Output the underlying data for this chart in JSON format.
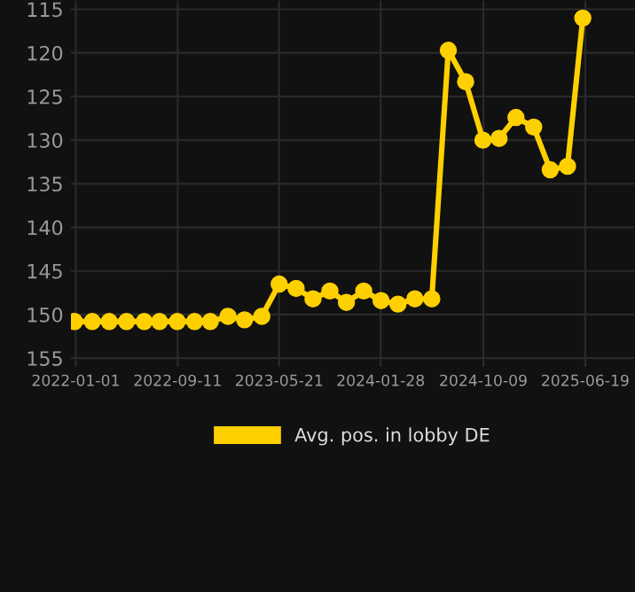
{
  "chart_data": {
    "type": "line",
    "x": [
      "2021-12-29",
      "2022-02-11",
      "2022-03-25",
      "2022-05-07",
      "2022-06-20",
      "2022-07-28",
      "2022-09-10",
      "2022-10-23",
      "2022-12-01",
      "2023-01-14",
      "2023-02-24",
      "2023-04-08",
      "2023-05-21",
      "2023-07-02",
      "2023-08-13",
      "2023-09-24",
      "2023-11-04",
      "2023-12-17",
      "2024-01-29",
      "2024-03-11",
      "2024-04-22",
      "2024-06-03",
      "2024-07-14",
      "2024-08-26",
      "2024-10-08",
      "2024-11-17",
      "2024-12-29",
      "2025-02-11",
      "2025-03-24",
      "2025-05-06",
      "2025-06-13"
    ],
    "series": [
      {
        "name": "Avg. pos. in lobby DE",
        "color": "#ffd000",
        "values": [
          150.8,
          150.8,
          150.8,
          150.8,
          150.8,
          150.8,
          150.8,
          150.8,
          150.8,
          150.2,
          150.6,
          150.2,
          146.5,
          147.0,
          148.2,
          147.3,
          148.6,
          147.3,
          148.4,
          148.8,
          148.2,
          148.2,
          119.7,
          123.3,
          130.0,
          129.8,
          127.4,
          128.5,
          133.4,
          133.0,
          116.0
        ]
      }
    ],
    "xlim": [
      "2021-12-20",
      "2025-10-19"
    ],
    "xticks": [
      {
        "value": "2022-01-01",
        "label": "2022-01-01"
      },
      {
        "value": "2022-09-11",
        "label": "2022-09-11"
      },
      {
        "value": "2023-05-21",
        "label": "2023-05-21"
      },
      {
        "value": "2024-01-28",
        "label": "2024-01-28"
      },
      {
        "value": "2024-10-09",
        "label": "2024-10-09"
      },
      {
        "value": "2025-06-19",
        "label": "2025-06-19"
      }
    ],
    "ylim": [
      156,
      114
    ],
    "yticks": [
      115,
      120,
      125,
      130,
      135,
      140,
      145,
      150,
      155
    ],
    "grid": true,
    "legend": "bottom",
    "marker": "circle",
    "line_style": "solid"
  }
}
